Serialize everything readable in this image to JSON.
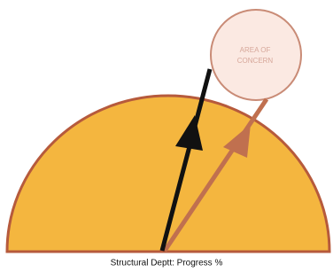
{
  "concern_label": {
    "lines": [
      "AREA OF",
      "CONCERN"
    ]
  },
  "caption": "Structural Deptt: Progress %"
}
